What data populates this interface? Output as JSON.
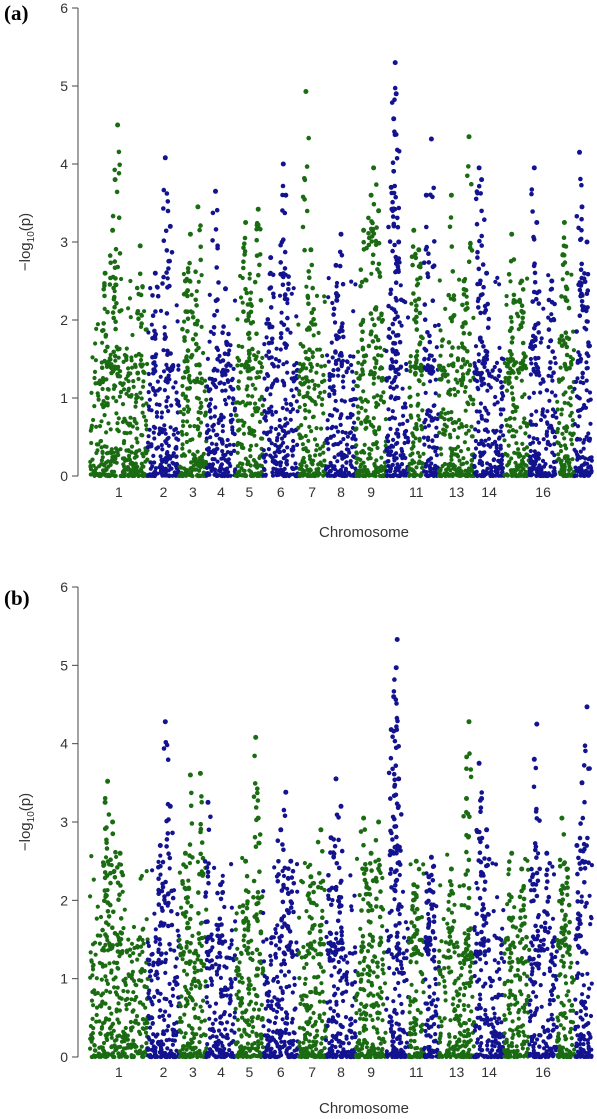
{
  "figure": {
    "colors": {
      "green": "#1a6b12",
      "blue": "#131390"
    },
    "tick_font": "sans"
  },
  "chart_data": [
    {
      "type": "scatter",
      "panel_label": "(a)",
      "xlabel": "Chromosome",
      "ylabel": "−log10(p)",
      "ylabel_main": "−log",
      "ylabel_sub": "10",
      "ylabel_paren": "(p)",
      "ylim": [
        0,
        6
      ],
      "yticks": [
        0,
        1,
        2,
        3,
        4,
        5,
        6
      ],
      "yticks_text": [
        "0",
        "1",
        "2",
        "3",
        "4",
        "5",
        "6"
      ],
      "x_tick_labels": [
        "1",
        "2",
        "3",
        "4",
        "5",
        "6",
        "7",
        "8",
        "9",
        "11",
        "13",
        "14",
        "16"
      ],
      "chromosomes": [
        {
          "chr": "1",
          "start": 0.0,
          "end": 0.115,
          "color": "green",
          "tick_shown": true,
          "peaks": [
            [
              0.055,
              4.5
            ],
            [
              0.05,
              3.8
            ],
            [
              0.045,
              3.15
            ],
            [
              0.1,
              2.95
            ],
            [
              0.03,
              2.6
            ]
          ]
        },
        {
          "chr": "2",
          "start": 0.115,
          "end": 0.178,
          "color": "blue",
          "tick_shown": true,
          "peaks": [
            [
              0.15,
              4.08
            ],
            [
              0.16,
              3.2
            ],
            [
              0.13,
              2.6
            ]
          ]
        },
        {
          "chr": "3",
          "start": 0.178,
          "end": 0.232,
          "color": "green",
          "tick_shown": true,
          "peaks": [
            [
              0.215,
              3.45
            ],
            [
              0.2,
              3.1
            ],
            [
              0.19,
              2.5
            ]
          ]
        },
        {
          "chr": "4",
          "start": 0.232,
          "end": 0.29,
          "color": "blue",
          "tick_shown": true,
          "peaks": [
            [
              0.25,
              3.65
            ],
            [
              0.27,
              2.4
            ]
          ]
        },
        {
          "chr": "5",
          "start": 0.29,
          "end": 0.345,
          "color": "green",
          "tick_shown": true,
          "peaks": [
            [
              0.335,
              3.42
            ],
            [
              0.31,
              3.25
            ],
            [
              0.32,
              2.2
            ]
          ]
        },
        {
          "chr": "6",
          "start": 0.345,
          "end": 0.415,
          "color": "blue",
          "tick_shown": true,
          "peaks": [
            [
              0.385,
              4.0
            ],
            [
              0.39,
              3.6
            ],
            [
              0.36,
              2.8
            ]
          ]
        },
        {
          "chr": "7",
          "start": 0.415,
          "end": 0.47,
          "color": "green",
          "tick_shown": true,
          "peaks": [
            [
              0.43,
              4.93
            ],
            [
              0.44,
              2.9
            ]
          ]
        },
        {
          "chr": "8",
          "start": 0.47,
          "end": 0.53,
          "color": "blue",
          "tick_shown": true,
          "peaks": [
            [
              0.5,
              3.1
            ],
            [
              0.49,
              2.7
            ]
          ]
        },
        {
          "chr": "9",
          "start": 0.53,
          "end": 0.59,
          "color": "green",
          "tick_shown": true,
          "peaks": [
            [
              0.565,
              3.95
            ],
            [
              0.56,
              3.6
            ],
            [
              0.575,
              3.4
            ],
            [
              0.545,
              3.15
            ]
          ]
        },
        {
          "chr": "10",
          "start": 0.59,
          "end": 0.635,
          "color": "blue",
          "tick_shown": false,
          "peaks": [
            [
              0.608,
              5.3
            ],
            [
              0.61,
              4.9
            ],
            [
              0.605,
              4.58
            ],
            [
              0.615,
              3.0
            ],
            [
              0.6,
              3.7
            ]
          ]
        },
        {
          "chr": "11",
          "start": 0.635,
          "end": 0.665,
          "color": "green",
          "tick_shown": true,
          "peaks": [
            [
              0.645,
              3.15
            ],
            [
              0.655,
              2.9
            ]
          ]
        },
        {
          "chr": "12",
          "start": 0.665,
          "end": 0.695,
          "color": "blue",
          "tick_shown": false,
          "peaks": [
            [
              0.67,
              3.6
            ],
            [
              0.68,
              4.32
            ]
          ]
        },
        {
          "chr": "13",
          "start": 0.695,
          "end": 0.765,
          "color": "green",
          "tick_shown": true,
          "peaks": [
            [
              0.72,
              3.6
            ],
            [
              0.745,
              2.5
            ],
            [
              0.755,
              4.35
            ]
          ]
        },
        {
          "chr": "14",
          "start": 0.765,
          "end": 0.825,
          "color": "blue",
          "tick_shown": true,
          "peaks": [
            [
              0.775,
              3.95
            ],
            [
              0.78,
              3.8
            ],
            [
              0.79,
              2.6
            ]
          ]
        },
        {
          "chr": "15",
          "start": 0.825,
          "end": 0.875,
          "color": "green",
          "tick_shown": false,
          "peaks": [
            [
              0.84,
              3.1
            ],
            [
              0.86,
              2.5
            ]
          ]
        },
        {
          "chr": "16",
          "start": 0.875,
          "end": 0.93,
          "color": "blue",
          "tick_shown": true,
          "peaks": [
            [
              0.885,
              3.95
            ],
            [
              0.89,
              3.25
            ],
            [
              0.92,
              2.5
            ]
          ]
        },
        {
          "chr": "17",
          "start": 0.93,
          "end": 0.965,
          "color": "green",
          "tick_shown": false,
          "peaks": [
            [
              0.945,
              3.25
            ],
            [
              0.95,
              2.4
            ]
          ]
        },
        {
          "chr": "18",
          "start": 0.965,
          "end": 1.0,
          "color": "blue",
          "tick_shown": false,
          "peaks": [
            [
              0.975,
              4.15
            ],
            [
              0.98,
              3.45
            ],
            [
              0.99,
              3.0
            ]
          ]
        }
      ]
    },
    {
      "type": "scatter",
      "panel_label": "(b)",
      "xlabel": "Chromosome",
      "ylabel": "−log10(p)",
      "ylabel_main": "−log",
      "ylabel_sub": "10",
      "ylabel_paren": "(p)",
      "ylim": [
        0,
        6
      ],
      "yticks": [
        0,
        1,
        2,
        3,
        4,
        5,
        6
      ],
      "yticks_text": [
        "0",
        "1",
        "2",
        "3",
        "4",
        "5",
        "6"
      ],
      "x_tick_labels": [
        "1",
        "2",
        "3",
        "4",
        "5",
        "6",
        "7",
        "8",
        "9",
        "11",
        "13",
        "14",
        "16"
      ],
      "chromosomes": [
        {
          "chr": "1",
          "start": 0.0,
          "end": 0.115,
          "color": "green",
          "tick_shown": true,
          "peaks": [
            [
              0.035,
              3.52
            ],
            [
              0.03,
              3.25
            ],
            [
              0.045,
              3.0
            ],
            [
              0.06,
              2.6
            ]
          ]
        },
        {
          "chr": "2",
          "start": 0.115,
          "end": 0.178,
          "color": "blue",
          "tick_shown": true,
          "peaks": [
            [
              0.15,
              4.28
            ],
            [
              0.16,
              3.2
            ],
            [
              0.14,
              2.7
            ]
          ]
        },
        {
          "chr": "3",
          "start": 0.178,
          "end": 0.232,
          "color": "green",
          "tick_shown": true,
          "peaks": [
            [
              0.2,
              3.6
            ],
            [
              0.22,
              3.62
            ],
            [
              0.19,
              2.6
            ]
          ]
        },
        {
          "chr": "4",
          "start": 0.232,
          "end": 0.29,
          "color": "blue",
          "tick_shown": true,
          "peaks": [
            [
              0.235,
              3.25
            ],
            [
              0.26,
              2.2
            ]
          ]
        },
        {
          "chr": "5",
          "start": 0.29,
          "end": 0.345,
          "color": "green",
          "tick_shown": true,
          "peaks": [
            [
              0.33,
              4.08
            ],
            [
              0.335,
              3.05
            ],
            [
              0.31,
              2.5
            ]
          ]
        },
        {
          "chr": "6",
          "start": 0.345,
          "end": 0.415,
          "color": "blue",
          "tick_shown": true,
          "peaks": [
            [
              0.39,
              3.38
            ],
            [
              0.38,
              2.9
            ],
            [
              0.4,
              2.5
            ]
          ]
        },
        {
          "chr": "7",
          "start": 0.415,
          "end": 0.47,
          "color": "green",
          "tick_shown": true,
          "peaks": [
            [
              0.46,
              2.9
            ],
            [
              0.44,
              2.3
            ]
          ]
        },
        {
          "chr": "8",
          "start": 0.47,
          "end": 0.53,
          "color": "blue",
          "tick_shown": true,
          "peaks": [
            [
              0.49,
              3.55
            ],
            [
              0.5,
              3.2
            ],
            [
              0.48,
              2.8
            ]
          ]
        },
        {
          "chr": "9",
          "start": 0.53,
          "end": 0.59,
          "color": "green",
          "tick_shown": true,
          "peaks": [
            [
              0.545,
              3.05
            ],
            [
              0.575,
              3.0
            ],
            [
              0.56,
              2.6
            ]
          ]
        },
        {
          "chr": "10",
          "start": 0.59,
          "end": 0.635,
          "color": "blue",
          "tick_shown": false,
          "peaks": [
            [
              0.612,
              5.33
            ],
            [
              0.61,
              4.97
            ],
            [
              0.605,
              4.6
            ],
            [
              0.6,
              4.18
            ],
            [
              0.615,
              3.55
            ]
          ]
        },
        {
          "chr": "11",
          "start": 0.635,
          "end": 0.665,
          "color": "green",
          "tick_shown": true,
          "peaks": [
            [
              0.65,
              2.5
            ],
            [
              0.645,
              2.2
            ]
          ]
        },
        {
          "chr": "12",
          "start": 0.665,
          "end": 0.695,
          "color": "blue",
          "tick_shown": false,
          "peaks": [
            [
              0.68,
              2.55
            ],
            [
              0.675,
              2.3
            ]
          ]
        },
        {
          "chr": "13",
          "start": 0.695,
          "end": 0.765,
          "color": "green",
          "tick_shown": true,
          "peaks": [
            [
              0.755,
              4.28
            ],
            [
              0.75,
              3.3
            ],
            [
              0.72,
              2.4
            ]
          ]
        },
        {
          "chr": "14",
          "start": 0.765,
          "end": 0.825,
          "color": "blue",
          "tick_shown": true,
          "peaks": [
            [
              0.775,
              3.75
            ],
            [
              0.78,
              3.3
            ],
            [
              0.79,
              2.9
            ]
          ]
        },
        {
          "chr": "15",
          "start": 0.825,
          "end": 0.875,
          "color": "green",
          "tick_shown": false,
          "peaks": [
            [
              0.84,
              2.6
            ],
            [
              0.86,
              2.4
            ]
          ]
        },
        {
          "chr": "16",
          "start": 0.875,
          "end": 0.93,
          "color": "blue",
          "tick_shown": true,
          "peaks": [
            [
              0.89,
              4.25
            ],
            [
              0.885,
              3.8
            ],
            [
              0.91,
              2.6
            ]
          ]
        },
        {
          "chr": "17",
          "start": 0.93,
          "end": 0.965,
          "color": "green",
          "tick_shown": false,
          "peaks": [
            [
              0.94,
              3.05
            ],
            [
              0.95,
              2.4
            ]
          ]
        },
        {
          "chr": "18",
          "start": 0.965,
          "end": 1.0,
          "color": "blue",
          "tick_shown": false,
          "peaks": [
            [
              0.99,
              4.47
            ],
            [
              0.98,
              3.5
            ],
            [
              0.97,
              2.7
            ]
          ]
        }
      ]
    }
  ]
}
